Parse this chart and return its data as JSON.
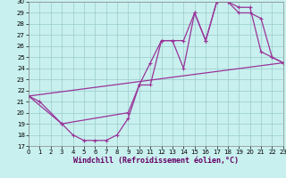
{
  "xlabel": "Windchill (Refroidissement éolien,°C)",
  "xlim": [
    0,
    23
  ],
  "ylim": [
    17,
    30
  ],
  "xticks": [
    0,
    1,
    2,
    3,
    4,
    5,
    6,
    7,
    8,
    9,
    10,
    11,
    12,
    13,
    14,
    15,
    16,
    17,
    18,
    19,
    20,
    21,
    22,
    23
  ],
  "yticks": [
    17,
    18,
    19,
    20,
    21,
    22,
    23,
    24,
    25,
    26,
    27,
    28,
    29,
    30
  ],
  "bg_color": "#c8f0ee",
  "line_color": "#993399",
  "grid_color": "#99cccc",
  "curve1_x": [
    0,
    1,
    3,
    4,
    5,
    6,
    7,
    8,
    9,
    10,
    11,
    12,
    13,
    14,
    15,
    16,
    17,
    18,
    19,
    20,
    21,
    22,
    23
  ],
  "curve1_y": [
    21.5,
    21.0,
    19.0,
    18.0,
    17.5,
    17.5,
    17.5,
    18.0,
    19.5,
    22.5,
    24.5,
    26.5,
    26.5,
    26.5,
    29.0,
    26.5,
    30.0,
    30.0,
    29.5,
    29.5,
    25.5,
    25.0,
    24.5
  ],
  "curve2_x": [
    0,
    3,
    9,
    10,
    11,
    12,
    13,
    14,
    15,
    16,
    17,
    18,
    19,
    20,
    21,
    22,
    23
  ],
  "curve2_y": [
    21.5,
    19.0,
    20.0,
    22.5,
    22.5,
    26.5,
    26.5,
    24.0,
    29.0,
    26.5,
    30.0,
    30.0,
    29.0,
    29.0,
    28.5,
    25.0,
    24.5
  ],
  "line3_x": [
    0,
    23
  ],
  "line3_y": [
    21.5,
    24.5
  ],
  "tick_fontsize": 5,
  "xlabel_fontsize": 6
}
